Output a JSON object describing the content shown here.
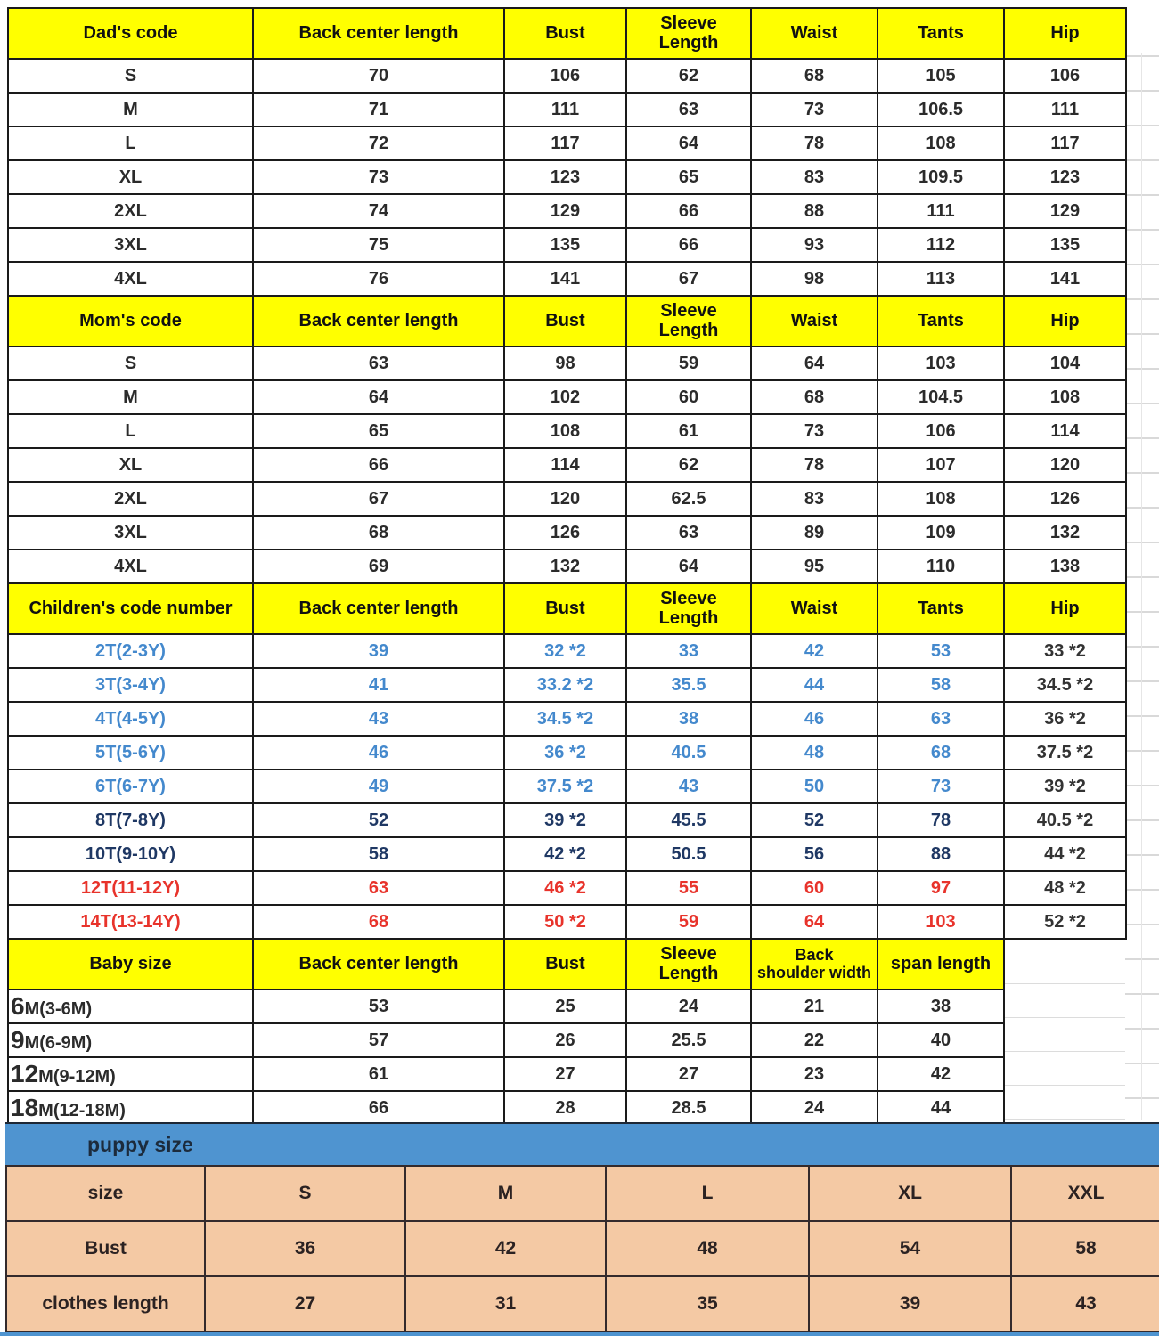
{
  "colors": {
    "header_yellow": "#ffff00",
    "band_blue": "#4f94d0",
    "puppy_peach": "#f4c9a4",
    "text_blue": "#4489cd",
    "text_navy": "#1f3864",
    "text_red": "#e8332b",
    "text_black": "#2b2b2b"
  },
  "sections": [
    {
      "id": "dad",
      "header": [
        "Dad's code",
        "Back center length",
        "Bust",
        "Sleeve\nLength",
        "Waist",
        "Tants",
        "Hip"
      ],
      "rows": [
        {
          "color": "black",
          "cells": [
            "S",
            "70",
            "106",
            "62",
            "68",
            "105",
            "106"
          ]
        },
        {
          "color": "black",
          "cells": [
            "M",
            "71",
            "111",
            "63",
            "73",
            "106.5",
            "111"
          ]
        },
        {
          "color": "black",
          "cells": [
            "L",
            "72",
            "117",
            "64",
            "78",
            "108",
            "117"
          ]
        },
        {
          "color": "black",
          "cells": [
            "XL",
            "73",
            "123",
            "65",
            "83",
            "109.5",
            "123"
          ]
        },
        {
          "color": "black",
          "cells": [
            "2XL",
            "74",
            "129",
            "66",
            "88",
            "111",
            "129"
          ]
        },
        {
          "color": "black",
          "cells": [
            "3XL",
            "75",
            "135",
            "66",
            "93",
            "112",
            "135"
          ]
        },
        {
          "color": "black",
          "cells": [
            "4XL",
            "76",
            "141",
            "67",
            "98",
            "113",
            "141"
          ]
        }
      ]
    },
    {
      "id": "mom",
      "header": [
        "Mom's code",
        "Back center length",
        "Bust",
        "Sleeve\nLength",
        "Waist",
        "Tants",
        "Hip"
      ],
      "rows": [
        {
          "color": "black",
          "cells": [
            "S",
            "63",
            "98",
            "59",
            "64",
            "103",
            "104"
          ]
        },
        {
          "color": "black",
          "cells": [
            "M",
            "64",
            "102",
            "60",
            "68",
            "104.5",
            "108"
          ]
        },
        {
          "color": "black",
          "cells": [
            "L",
            "65",
            "108",
            "61",
            "73",
            "106",
            "114"
          ]
        },
        {
          "color": "black",
          "cells": [
            "XL",
            "66",
            "114",
            "62",
            "78",
            "107",
            "120"
          ]
        },
        {
          "color": "black",
          "cells": [
            "2XL",
            "67",
            "120",
            "62.5",
            "83",
            "108",
            "126"
          ]
        },
        {
          "color": "black",
          "cells": [
            "3XL",
            "68",
            "126",
            "63",
            "89",
            "109",
            "132"
          ]
        },
        {
          "color": "black",
          "cells": [
            "4XL",
            "69",
            "132",
            "64",
            "95",
            "110",
            "138"
          ]
        }
      ]
    },
    {
      "id": "children",
      "last_cell_black": true,
      "header": [
        "Children's code number",
        "Back center length",
        "Bust",
        "Sleeve\nLength",
        "Waist",
        "Tants",
        "Hip"
      ],
      "rows": [
        {
          "color": "blue",
          "cells": [
            "2T(2-3Y)",
            "39",
            "32 *2",
            "33",
            "42",
            "53",
            "33 *2"
          ]
        },
        {
          "color": "blue",
          "cells": [
            "3T(3-4Y)",
            "41",
            "33.2 *2",
            "35.5",
            "44",
            "58",
            "34.5 *2"
          ]
        },
        {
          "color": "blue",
          "cells": [
            "4T(4-5Y)",
            "43",
            "34.5 *2",
            "38",
            "46",
            "63",
            "36 *2"
          ]
        },
        {
          "color": "blue",
          "cells": [
            "5T(5-6Y)",
            "46",
            "36 *2",
            "40.5",
            "48",
            "68",
            "37.5 *2"
          ]
        },
        {
          "color": "blue",
          "cells": [
            "6T(6-7Y)",
            "49",
            "37.5 *2",
            "43",
            "50",
            "73",
            "39 *2"
          ]
        },
        {
          "color": "navy",
          "cells": [
            "8T(7-8Y)",
            "52",
            "39 *2",
            "45.5",
            "52",
            "78",
            "40.5 *2"
          ]
        },
        {
          "color": "navy",
          "cells": [
            "10T(9-10Y)",
            "58",
            "42 *2",
            "50.5",
            "56",
            "88",
            "44 *2"
          ]
        },
        {
          "color": "red",
          "cells": [
            "12T(11-12Y)",
            "63",
            "46 *2",
            "55",
            "60",
            "97",
            "48 *2"
          ]
        },
        {
          "color": "red",
          "cells": [
            "14T(13-14Y)",
            "68",
            "50 *2",
            "59",
            "64",
            "103",
            "52 *2"
          ]
        }
      ]
    },
    {
      "id": "baby",
      "header": [
        "Baby size",
        "Back center length",
        "Bust",
        "Sleeve\nLength",
        "Back\nshoulder width",
        "span length"
      ],
      "rows": [
        {
          "color": "black",
          "big": "6",
          "cells": [
            "6M(3-6M)",
            "53",
            "25",
            "24",
            "21",
            "38"
          ]
        },
        {
          "color": "black",
          "big": "9",
          "cells": [
            "9M(6-9M)",
            "57",
            "26",
            "25.5",
            "22",
            "40"
          ]
        },
        {
          "color": "black",
          "big": "12",
          "cells": [
            "12M(9-12M)",
            "61",
            "27",
            "27",
            "23",
            "42"
          ]
        },
        {
          "color": "black",
          "big": "18",
          "cells": [
            "18M(12-18M)",
            "66",
            "28",
            "28.5",
            "24",
            "44"
          ]
        }
      ]
    }
  ],
  "puppy": {
    "band_label": "puppy size",
    "rows": [
      {
        "cells": [
          "size",
          "S",
          "M",
          "L",
          "XL",
          "XXL"
        ]
      },
      {
        "cells": [
          "Bust",
          "36",
          "42",
          "48",
          "54",
          "58"
        ]
      },
      {
        "cells": [
          "clothes length",
          "27",
          "31",
          "35",
          "39",
          "43"
        ]
      }
    ]
  }
}
